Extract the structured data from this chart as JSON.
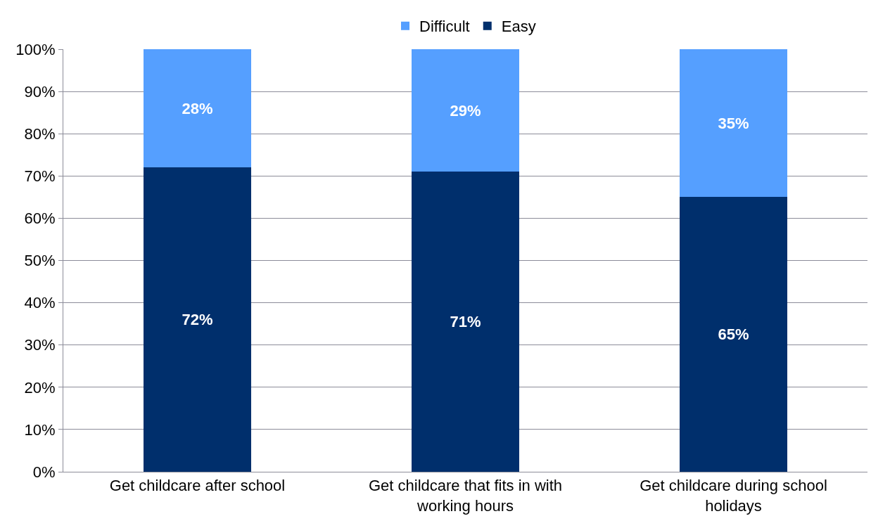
{
  "chart_data": {
    "type": "bar",
    "stacked": true,
    "categories": [
      "Get childcare after school",
      "Get childcare that fits in with working hours",
      "Get childcare during school holidays"
    ],
    "series": [
      {
        "name": "Easy",
        "color": "#002f6c",
        "values": [
          72,
          71,
          65
        ],
        "value_labels": [
          "72%",
          "71%",
          "65%"
        ]
      },
      {
        "name": "Difficult",
        "color": "#559fff",
        "values": [
          28,
          29,
          35
        ],
        "value_labels": [
          "28%",
          "29%",
          "35%"
        ]
      }
    ],
    "ylim": [
      0,
      100
    ],
    "yticks": [
      {
        "value": 0,
        "label": "0%"
      },
      {
        "value": 10,
        "label": "10%"
      },
      {
        "value": 20,
        "label": "20%"
      },
      {
        "value": 30,
        "label": "30%"
      },
      {
        "value": 40,
        "label": "40%"
      },
      {
        "value": 50,
        "label": "50%"
      },
      {
        "value": 60,
        "label": "60%"
      },
      {
        "value": 70,
        "label": "70%"
      },
      {
        "value": 80,
        "label": "80%"
      },
      {
        "value": 90,
        "label": "90%"
      },
      {
        "value": 100,
        "label": "100%"
      }
    ],
    "grid": "y",
    "legend": "top"
  }
}
